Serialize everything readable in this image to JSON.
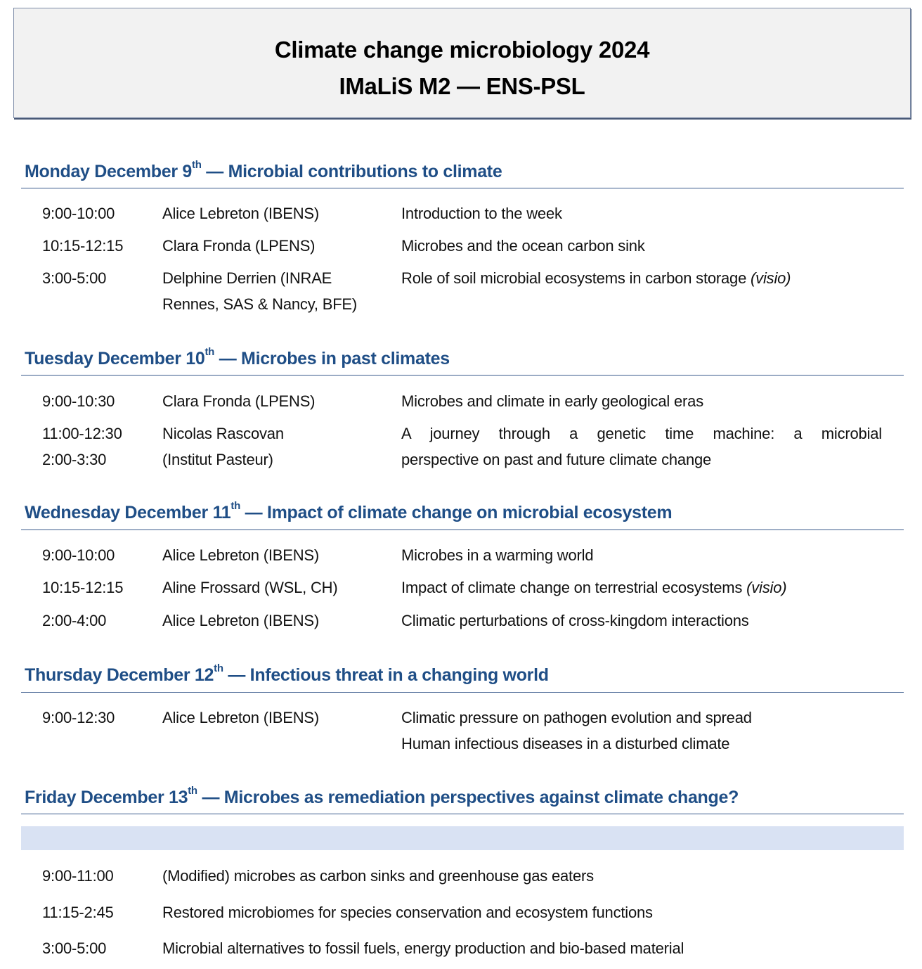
{
  "header": {
    "title_line1": "Climate change microbiology 2024",
    "title_line2": "IMaLiS M2 — ENS-PSL"
  },
  "days": [
    {
      "day": "Monday December 9",
      "sup": "th",
      "theme": " — Microbial contributions to climate",
      "sessions": [
        {
          "time": [
            "9:00-10:00"
          ],
          "speaker": [
            "Alice Lebreton (IBENS)"
          ],
          "topic": [
            "Introduction to the week"
          ]
        },
        {
          "time": [
            "10:15-12:15"
          ],
          "speaker": [
            "Clara Fronda (LPENS)"
          ],
          "topic": [
            "Microbes and the ocean carbon sink"
          ]
        },
        {
          "time": [
            "3:00-5:00"
          ],
          "speaker": [
            "Delphine Derrien (INRAE",
            "Rennes, SAS & Nancy, BFE)"
          ],
          "topic": [
            "Role of soil microbial ecosystems in carbon storage "
          ],
          "note": "(visio)"
        }
      ]
    },
    {
      "day": "Tuesday December 10",
      "sup": "th",
      "theme": " — Microbes in past climates",
      "sessions": [
        {
          "time": [
            "9:00-10:30"
          ],
          "speaker": [
            "Clara Fronda (LPENS)"
          ],
          "topic": [
            "Microbes and climate in early geological eras"
          ]
        },
        {
          "time": [
            "11:00-12:30",
            "2:00-3:30"
          ],
          "speaker": [
            "Nicolas Rascovan",
            "(Institut Pasteur)"
          ],
          "topic": [
            "A journey through a genetic time machine: a microbial",
            "perspective on past and future climate change"
          ]
        }
      ]
    },
    {
      "day": "Wednesday December 11",
      "sup": "th",
      "theme": " — Impact of climate change on microbial ecosystem",
      "sessions": [
        {
          "time": [
            "9:00-10:00"
          ],
          "speaker": [
            "Alice Lebreton (IBENS)"
          ],
          "topic": [
            "Microbes in a warming world"
          ]
        },
        {
          "time": [
            "10:15-12:15"
          ],
          "speaker": [
            "Aline Frossard (WSL, CH)"
          ],
          "topic": [
            "Impact of climate change on terrestrial ecosystems "
          ],
          "note": "(visio)"
        },
        {
          "time": [
            "2:00-4:00"
          ],
          "speaker": [
            "Alice Lebreton (IBENS)"
          ],
          "topic": [
            "Climatic perturbations of cross-kingdom interactions"
          ]
        }
      ]
    },
    {
      "day": "Thursday December 12",
      "sup": "th",
      "theme": " — Infectious threat in a changing world",
      "sessions": [
        {
          "time": [
            "9:00-12:30"
          ],
          "speaker": [
            "Alice Lebreton (IBENS)"
          ],
          "topic": [
            "Climatic pressure on pathogen evolution and spread",
            "Human infectious diseases in a disturbed climate"
          ]
        }
      ]
    },
    {
      "day": "Friday December 13",
      "sup": "th",
      "theme": " — Microbes as remediation perspectives against climate change?",
      "sessions": [
        {
          "time": [
            "9:00-11:00"
          ],
          "topic": [
            "(Modified) microbes as carbon sinks and greenhouse gas eaters"
          ]
        },
        {
          "time": [
            "11:15-2:45"
          ],
          "topic": [
            "Restored microbiomes for species conservation and ecosystem functions"
          ]
        },
        {
          "time": [
            "3:00-5:00"
          ],
          "topic": [
            "Microbial alternatives to fossil fuels, energy production and bio-based material"
          ]
        }
      ]
    }
  ],
  "colors": {
    "heading": "#1f4e86",
    "band": "#d9e2f3",
    "header_bg": "#f2f2f2"
  }
}
